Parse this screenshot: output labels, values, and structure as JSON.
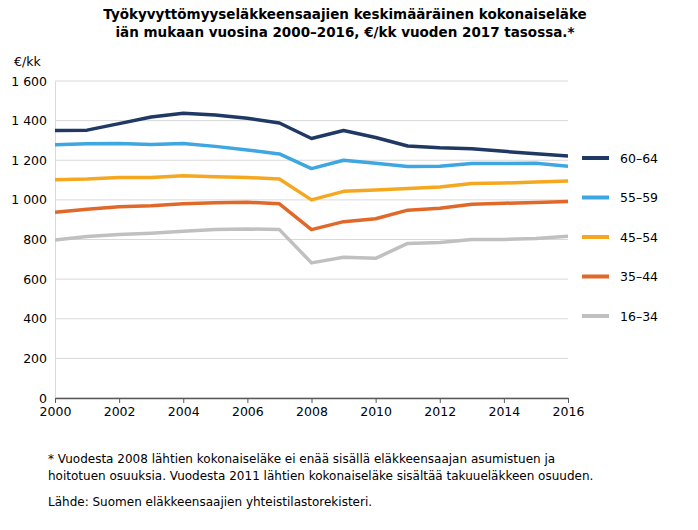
{
  "chart_data": {
    "type": "line",
    "title": [
      "Työkyvyttömyyseläkkeensaajien keskimääräinen kokonaiseläke",
      "iän mukaan vuosina 2000–2016, €/kk vuoden 2017 tasossa.*"
    ],
    "ylabel": "€/kk",
    "x": [
      2000,
      2001,
      2002,
      2003,
      2004,
      2005,
      2006,
      2007,
      2008,
      2009,
      2010,
      2011,
      2012,
      2013,
      2014,
      2015,
      2016
    ],
    "series": [
      {
        "name": "60–64",
        "color": "#1f3864",
        "values": [
          1350,
          1352,
          1385,
          1418,
          1437,
          1428,
          1412,
          1388,
          1310,
          1350,
          1315,
          1272,
          1263,
          1258,
          1245,
          1233,
          1222
        ]
      },
      {
        "name": "55–59",
        "color": "#3ea6e0",
        "values": [
          1278,
          1283,
          1285,
          1280,
          1285,
          1270,
          1252,
          1232,
          1158,
          1200,
          1185,
          1168,
          1170,
          1183,
          1183,
          1185,
          1170
        ]
      },
      {
        "name": "45–54",
        "color": "#f5a81f",
        "values": [
          1102,
          1105,
          1113,
          1113,
          1122,
          1117,
          1113,
          1105,
          1000,
          1043,
          1050,
          1057,
          1065,
          1083,
          1085,
          1090,
          1095
        ]
      },
      {
        "name": "35–44",
        "color": "#e0692a",
        "values": [
          937,
          953,
          965,
          970,
          980,
          985,
          988,
          980,
          850,
          890,
          905,
          948,
          958,
          978,
          983,
          987,
          992
        ]
      },
      {
        "name": "16–34",
        "color": "#c0c0c0",
        "values": [
          798,
          815,
          825,
          832,
          842,
          850,
          853,
          850,
          682,
          710,
          705,
          780,
          785,
          800,
          800,
          805,
          817
        ]
      }
    ],
    "xlim": [
      2000,
      2016
    ],
    "xticks": [
      2000,
      2002,
      2004,
      2006,
      2008,
      2010,
      2012,
      2014,
      2016
    ],
    "ylim": [
      0,
      1600
    ],
    "yticks": [
      0,
      200,
      400,
      600,
      800,
      {
        "value": 1000,
        "label": "1 000"
      },
      {
        "value": 1200,
        "label": "1 200"
      },
      {
        "value": 1400,
        "label": "1 400"
      },
      {
        "value": 1600,
        "label": "1 600"
      }
    ],
    "grid": true,
    "legend": "right",
    "footnote": [
      "* Vuodesta 2008 lähtien kokonaiseläke ei enää sisällä eläkkeensaajan asumistuen ja",
      "hoitotuen osuuksia. Vuodesta 2011 lähtien kokonaiseläke sisältää takuueläkkeen osuuden."
    ],
    "source": "Lähde: Suomen eläkkeensaajien yhteistilastorekisteri."
  }
}
